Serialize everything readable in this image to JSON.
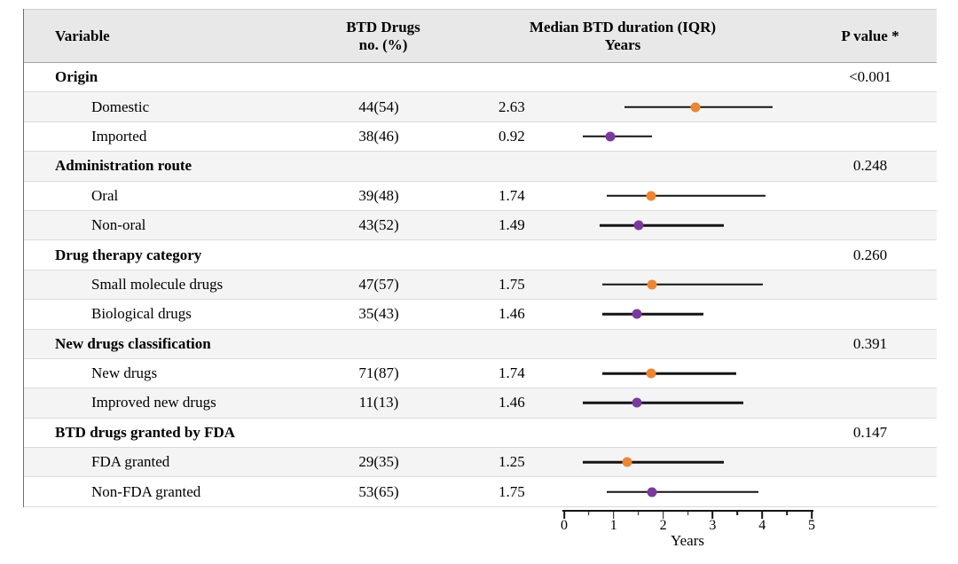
{
  "header": {
    "variable": "Variable",
    "n_col": "BTD Drugs\nno. (%)",
    "median_col": "Median BTD duration (IQR)\nYears",
    "p_col": "P value *"
  },
  "colors": {
    "orange": "#EC8633",
    "purple": "#7A3A9D",
    "header_bg": "#E8E8E8",
    "alt_row_bg": "#F4F4F4",
    "line": "#141414"
  },
  "axis": {
    "min": 0,
    "max": 5,
    "major_ticks": [
      "0",
      "1",
      "2",
      "3",
      "4",
      "5"
    ],
    "minor_ticks": [
      0.5,
      1.5,
      2.5,
      3.5,
      4.5
    ],
    "label": "Years"
  },
  "chart_data": {
    "type": "forest",
    "title": "Median BTD duration (IQR), Years",
    "xlabel": "Years",
    "xlim": [
      0,
      5
    ],
    "legend_position": "none",
    "grid": false,
    "groups": [
      {
        "category": "Origin",
        "p_value": "<0.001",
        "items": [
          {
            "label": "Domestic",
            "n": "44(54)",
            "median_text": "2.63",
            "median": 2.63,
            "iqr": [
              1.2,
              4.2
            ],
            "marker": "orange"
          },
          {
            "label": "Imported",
            "n": "38(46)",
            "median_text": "0.92",
            "median": 0.92,
            "iqr": [
              0.35,
              1.75
            ],
            "marker": "purple"
          }
        ]
      },
      {
        "category": "Administration route",
        "p_value": "0.248",
        "items": [
          {
            "label": "Oral",
            "n": "39(48)",
            "median_text": "1.74",
            "median": 1.74,
            "iqr": [
              0.85,
              4.05
            ],
            "marker": "orange"
          },
          {
            "label": "Non-oral",
            "n": "43(52)",
            "median_text": "1.49",
            "median": 1.49,
            "iqr": [
              0.7,
              3.2
            ],
            "marker": "purple"
          }
        ]
      },
      {
        "category": "Drug therapy category",
        "p_value": "0.260",
        "items": [
          {
            "label": "Small molecule drugs",
            "n": "47(57)",
            "median_text": "1.75",
            "median": 1.75,
            "iqr": [
              0.75,
              4.0
            ],
            "marker": "orange"
          },
          {
            "label": "Biological drugs",
            "n": "35(43)",
            "median_text": "1.46",
            "median": 1.46,
            "iqr": [
              0.75,
              2.8
            ],
            "marker": "purple"
          }
        ]
      },
      {
        "category": "New drugs classification",
        "p_value": "0.391",
        "items": [
          {
            "label": "New drugs",
            "n": "71(87)",
            "median_text": "1.74",
            "median": 1.74,
            "iqr": [
              0.75,
              3.45
            ],
            "marker": "orange"
          },
          {
            "label": "Improved new drugs",
            "n": "11(13)",
            "median_text": "1.46",
            "median": 1.46,
            "iqr": [
              0.35,
              3.6
            ],
            "marker": "purple"
          }
        ]
      },
      {
        "category": "BTD drugs granted by FDA",
        "p_value": "0.147",
        "items": [
          {
            "label": "FDA granted",
            "n": "29(35)",
            "median_text": "1.25",
            "median": 1.25,
            "iqr": [
              0.35,
              3.2
            ],
            "marker": "orange"
          },
          {
            "label": "Non-FDA granted",
            "n": "53(65)",
            "median_text": "1.75",
            "median": 1.75,
            "iqr": [
              0.85,
              3.9
            ],
            "marker": "purple"
          }
        ]
      }
    ]
  }
}
